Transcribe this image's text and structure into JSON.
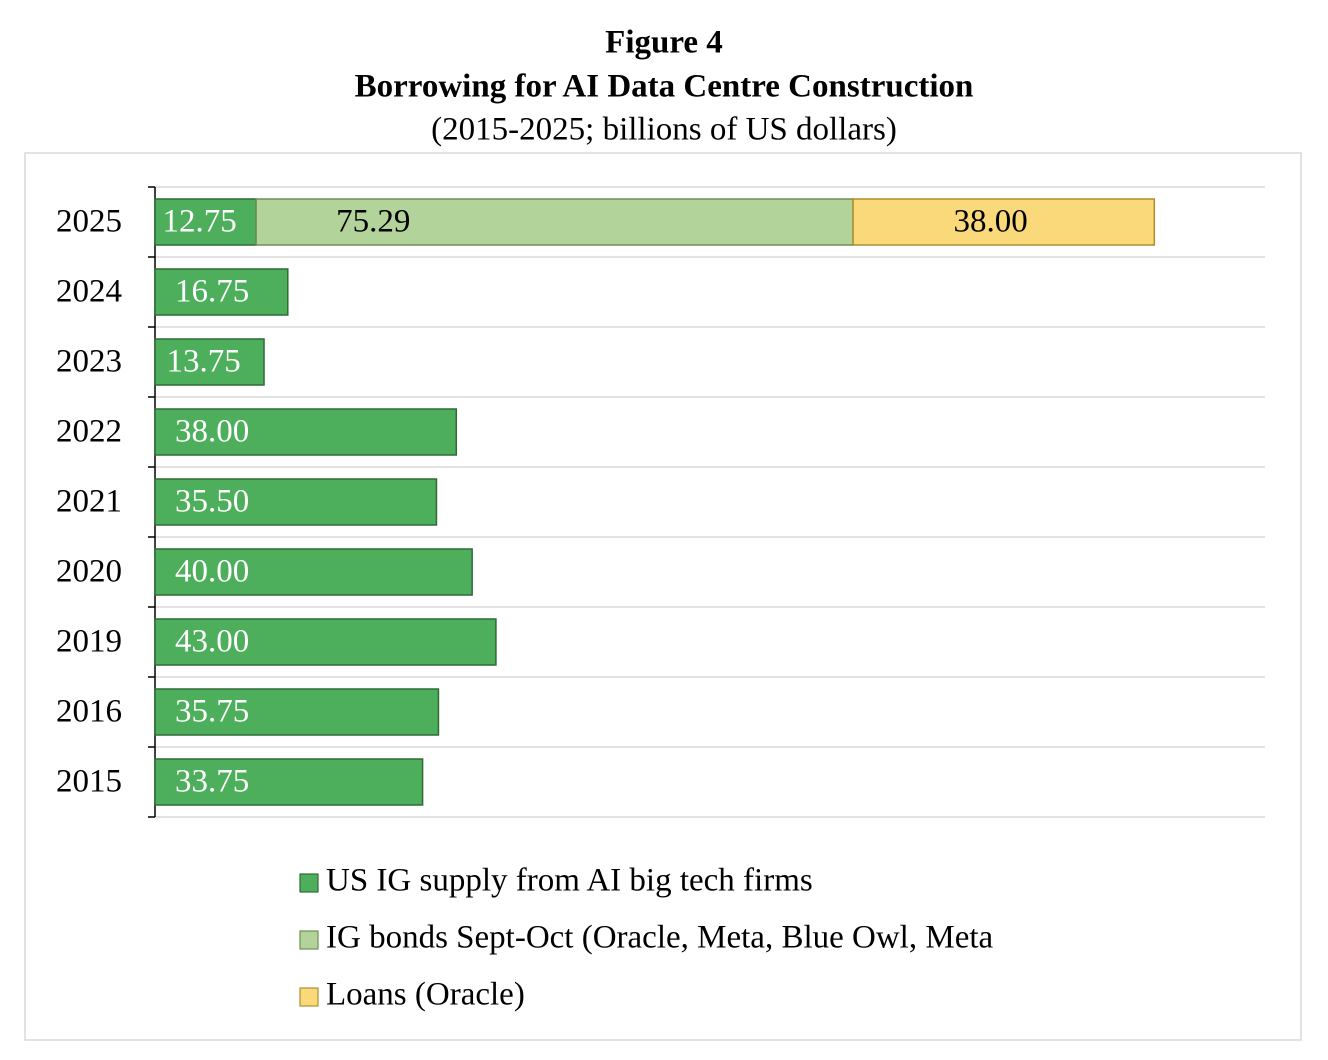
{
  "chart_data": {
    "type": "stacked-horizontal-bar",
    "title": "Figure 4",
    "subtitle": "Borrowing for AI Data Centre Construction",
    "note": "(2015-2025; billions of US dollars)",
    "categories": [
      "2025",
      "2024",
      "2023",
      "2022",
      "2021",
      "2020",
      "2019",
      "2016",
      "2015"
    ],
    "series": [
      {
        "name": "US IG supply from AI big tech firms",
        "color": "#4daf5c",
        "values": [
          12.75,
          16.75,
          13.75,
          38,
          35.5,
          40,
          43,
          35.75,
          33.75
        ],
        "value_labels": [
          "12.75",
          "16.75",
          "13.75",
          "38.00",
          "35.50",
          "40.00",
          "43.00",
          "35.75",
          "33.75"
        ]
      },
      {
        "name": "IG bonds Sept-Oct (Oracle, Meta, Blue Owl, Meta",
        "color": "#b2d39a",
        "values": [
          75.29,
          null,
          null,
          null,
          null,
          null,
          null,
          null,
          null
        ],
        "value_labels": [
          "75.29",
          null,
          null,
          null,
          null,
          null,
          null,
          null,
          null
        ]
      },
      {
        "name": "Loans (Oracle)",
        "color": "#f9d97a",
        "values": [
          38,
          null,
          null,
          null,
          null,
          null,
          null,
          null,
          null
        ],
        "value_labels": [
          "38.00",
          null,
          null,
          null,
          null,
          null,
          null,
          null,
          null
        ]
      }
    ],
    "xlim": [
      0,
      140
    ],
    "grid": true
  }
}
